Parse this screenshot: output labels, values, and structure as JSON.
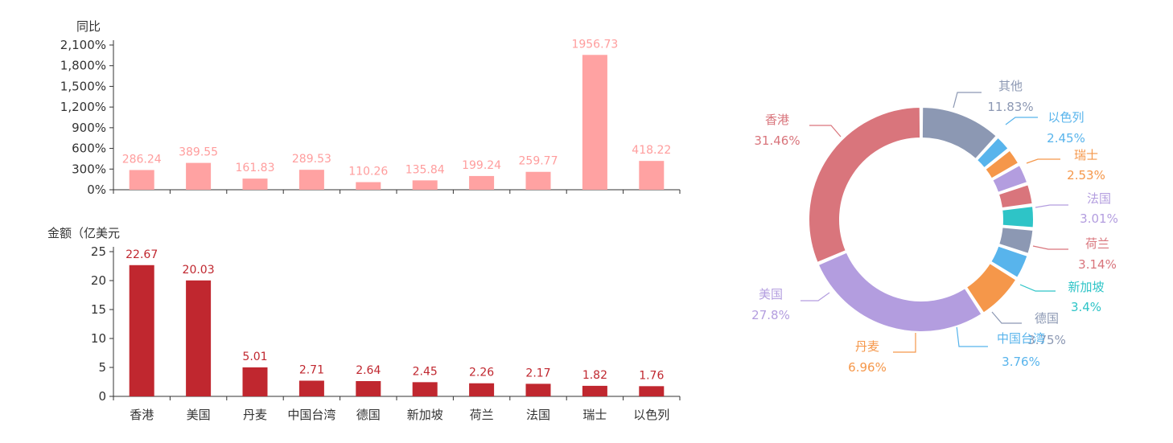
{
  "chart_data": [
    {
      "type": "bar",
      "ylabel": "同比",
      "categories": [
        "香港",
        "美国",
        "丹麦",
        "中国台湾",
        "德国",
        "新加坡",
        "荷兰",
        "法国",
        "瑞士",
        "以色列"
      ],
      "values": [
        286.24,
        389.55,
        161.83,
        289.53,
        110.26,
        135.84,
        199.24,
        259.77,
        1956.73,
        418.22
      ],
      "value_labels": [
        "286.24",
        "389.55",
        "161.83",
        "289.53",
        "110.26",
        "135.84",
        "199.24",
        "259.77",
        "1956.73",
        "418.22"
      ],
      "ylim": [
        0,
        2100
      ],
      "yticks": [
        0,
        300,
        600,
        900,
        1200,
        1500,
        1800,
        2100
      ],
      "ytick_labels": [
        "0%",
        "300%",
        "600%",
        "900%",
        "1,200%",
        "1,500%",
        "1,800%",
        "2,100%"
      ],
      "grid": false,
      "color": "#ffa2a2"
    },
    {
      "type": "bar",
      "ylabel": "金额（亿美元",
      "categories": [
        "香港",
        "美国",
        "丹麦",
        "中国台湾",
        "德国",
        "新加坡",
        "荷兰",
        "法国",
        "瑞士",
        "以色列"
      ],
      "values": [
        22.67,
        20.03,
        5.01,
        2.71,
        2.64,
        2.45,
        2.26,
        2.17,
        1.82,
        1.76
      ],
      "value_labels": [
        "22.67",
        "20.03",
        "5.01",
        "2.71",
        "2.64",
        "2.45",
        "2.26",
        "2.17",
        "1.82",
        "1.76"
      ],
      "ylim": [
        0,
        25
      ],
      "yticks": [
        0,
        5,
        10,
        15,
        20,
        25
      ],
      "ytick_labels": [
        "0",
        "5",
        "10",
        "15",
        "20",
        "25"
      ],
      "grid": false,
      "color": "#c0272f"
    },
    {
      "type": "pie",
      "donut": true,
      "slices": [
        {
          "name": "其他",
          "value": 11.83,
          "label": "11.83%",
          "color": "#8c98b3"
        },
        {
          "name": "以色列",
          "value": 2.45,
          "label": "2.45%",
          "color": "#58b4ec"
        },
        {
          "name": "瑞士",
          "value": 2.53,
          "label": "2.53%",
          "color": "#f5974a"
        },
        {
          "name": "法国",
          "value": 3.01,
          "label": "3.01%",
          "color": "#b39ddf"
        },
        {
          "name": "荷兰",
          "value": 3.14,
          "label": "3.14%",
          "color": "#d9757c"
        },
        {
          "name": "新加坡",
          "value": 3.4,
          "label": "3.4%",
          "color": "#2ec4c7"
        },
        {
          "name": "德国",
          "value": 3.75,
          "label": "3.75%",
          "color": "#8c98b3"
        },
        {
          "name": "中国台湾",
          "value": 3.76,
          "label": "3.76%",
          "color": "#58b4ec"
        },
        {
          "name": "丹麦",
          "value": 6.96,
          "label": "6.96%",
          "color": "#f5974a"
        },
        {
          "name": "美国",
          "value": 27.8,
          "label": "27.8%",
          "color": "#b39ddf"
        },
        {
          "name": "香港",
          "value": 31.46,
          "label": "31.46%",
          "color": "#d9757c"
        }
      ]
    }
  ]
}
